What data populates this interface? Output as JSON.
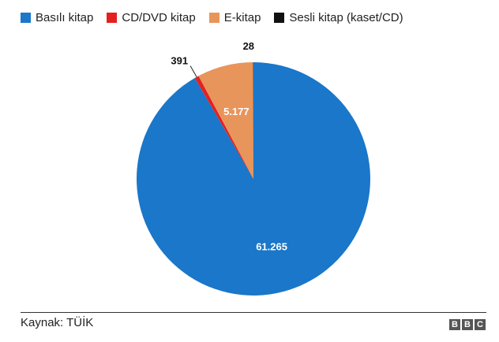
{
  "chart_data": {
    "type": "pie",
    "title": "",
    "categories": [
      "Basılı kitap",
      "CD/DVD kitap",
      "E-kitap",
      "Sesli kitap (kaset/CD)"
    ],
    "values": [
      61265,
      391,
      5177,
      28
    ],
    "value_labels": [
      "61.265",
      "391",
      "5.177",
      "28"
    ],
    "colors": [
      "#1a77c9",
      "#e52020",
      "#e8955c",
      "#111111"
    ],
    "legend_position": "top-left",
    "grid": false
  },
  "legend": {
    "items": [
      {
        "label": "Basılı kitap",
        "color": "#1a77c9"
      },
      {
        "label": "CD/DVD kitap",
        "color": "#e52020"
      },
      {
        "label": "E-kitap",
        "color": "#e8955c"
      },
      {
        "label": "Sesli kitap (kaset/CD)",
        "color": "#111111"
      }
    ]
  },
  "footer": {
    "source": "Kaynak: TÜİK",
    "logo_letters": [
      "B",
      "B",
      "C"
    ]
  }
}
